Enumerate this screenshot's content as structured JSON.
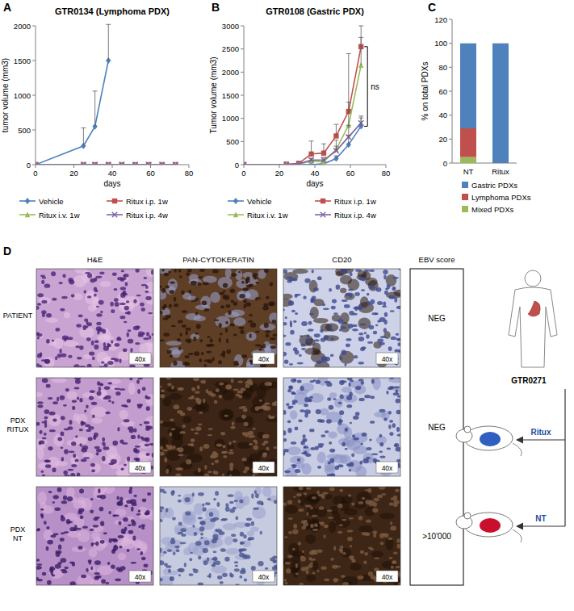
{
  "panel_labels": [
    "A",
    "B",
    "C",
    "D"
  ],
  "chart_data": [
    {
      "type": "line",
      "title": "GTR0134 (Lymphoma PDX)",
      "x_label": "days",
      "y_label": "tumor volume (mm3)",
      "xlim": [
        0,
        80
      ],
      "xticks": [
        0,
        20,
        40,
        60,
        80
      ],
      "ylim": [
        0,
        2000
      ],
      "yticks": [
        0,
        500,
        1000,
        1500,
        2000
      ],
      "grid": false,
      "legend": "bottom",
      "series": [
        {
          "name": "Vehicle",
          "color": "#4f81bd",
          "marker": "diamond",
          "x": [
            0,
            25,
            31,
            38
          ],
          "values": [
            0,
            270,
            550,
            1500
          ],
          "errors": [
            null,
            260,
            510,
            520
          ]
        },
        {
          "name": "Ritux i.p. 1w",
          "color": "#c0504d",
          "marker": "square",
          "x": [
            0,
            25,
            31,
            38,
            45,
            52,
            59,
            66,
            73
          ],
          "values": [
            0,
            0,
            0,
            0,
            0,
            0,
            0,
            0,
            0
          ]
        },
        {
          "name": "Ritux i.v. 1w",
          "color": "#9bbb59",
          "marker": "triangle",
          "x": [
            0,
            25,
            31,
            38,
            45,
            52,
            59,
            66,
            73
          ],
          "values": [
            0,
            0,
            0,
            0,
            0,
            0,
            0,
            0,
            0
          ]
        },
        {
          "name": "Ritux i.p. 4w",
          "color": "#8064a2",
          "marker": "x",
          "x": [
            0,
            25,
            31,
            38,
            45,
            52,
            59,
            66,
            73
          ],
          "values": [
            0,
            0,
            0,
            0,
            0,
            0,
            0,
            0,
            0
          ]
        }
      ]
    },
    {
      "type": "line",
      "title": "GTR0108 (Gastric PDX)",
      "x_label": "days",
      "y_label": "Tumor volume (mm3)",
      "xlim": [
        0,
        80
      ],
      "xticks": [
        0,
        20,
        40,
        60,
        80
      ],
      "ylim": [
        0,
        3000
      ],
      "yticks": [
        0,
        500,
        1000,
        1500,
        2000,
        2500,
        3000
      ],
      "grid": false,
      "legend": "bottom",
      "annotations": [
        "ns"
      ],
      "series": [
        {
          "name": "Vehicle",
          "color": "#4f81bd",
          "marker": "diamond",
          "x": [
            0,
            24,
            31,
            38,
            45,
            52,
            59,
            66
          ],
          "values": [
            0,
            0,
            0,
            0,
            20,
            130,
            430,
            830
          ],
          "errors": [
            null,
            null,
            null,
            null,
            null,
            60,
            200,
            180
          ]
        },
        {
          "name": "Ritux i.p. 1w",
          "color": "#c0504d",
          "marker": "square",
          "x": [
            0,
            24,
            31,
            38,
            45,
            52,
            59,
            66
          ],
          "values": [
            0,
            10,
            30,
            230,
            250,
            620,
            1150,
            2550
          ],
          "errors": [
            null,
            null,
            null,
            280,
            200,
            250,
            1250,
            450
          ]
        },
        {
          "name": "Ritux i.v. 1w",
          "color": "#9bbb59",
          "marker": "triangle",
          "x": [
            0,
            24,
            31,
            38,
            45,
            52,
            59,
            66
          ],
          "values": [
            0,
            0,
            10,
            80,
            60,
            330,
            850,
            2150
          ],
          "errors": [
            null,
            null,
            null,
            60,
            100,
            200,
            500,
            600
          ]
        },
        {
          "name": "Ritux i.p. 4w",
          "color": "#8064a2",
          "marker": "x",
          "x": [
            0,
            24,
            31,
            38,
            45,
            52,
            59,
            66
          ],
          "values": [
            0,
            0,
            20,
            100,
            100,
            300,
            600,
            900
          ],
          "errors": [
            null,
            null,
            null,
            null,
            null,
            100,
            250,
            150
          ]
        }
      ]
    },
    {
      "type": "bar",
      "stacked": true,
      "y_label": "% on total PDXs",
      "categories": [
        "NT",
        "Ritux"
      ],
      "ylim": [
        0,
        120
      ],
      "yticks": [
        0,
        20,
        40,
        60,
        80,
        100,
        120
      ],
      "grid": false,
      "legend": "bottom",
      "series": [
        {
          "name": "Gastric PDXs",
          "color": "#4f81bd",
          "values": [
            71,
            100
          ]
        },
        {
          "name": "Lymphoma PDXs",
          "color": "#c0504d",
          "values": [
            24,
            0
          ]
        },
        {
          "name": "Mixed PDXs",
          "color": "#9bbb59",
          "values": [
            5,
            0
          ]
        }
      ]
    }
  ],
  "panel_d": {
    "columns": [
      "H&E",
      "PAN-CYTOKERATIN",
      "CD20",
      "EBV score"
    ],
    "rows": [
      {
        "label": "PATIENT",
        "magnifications": [
          "40x",
          "40x",
          "40x"
        ],
        "ebv_score": "NEG"
      },
      {
        "label": "PDX RITUX",
        "magnifications": [
          "40x",
          "40x",
          "40x"
        ],
        "ebv_score": "NEG"
      },
      {
        "label": "PDX NT",
        "magnifications": [
          "40x",
          "40x",
          "40x"
        ],
        "ebv_score": ">10'000"
      }
    ],
    "sample": "GTR0271",
    "arms": [
      "Ritux",
      "NT"
    ]
  }
}
